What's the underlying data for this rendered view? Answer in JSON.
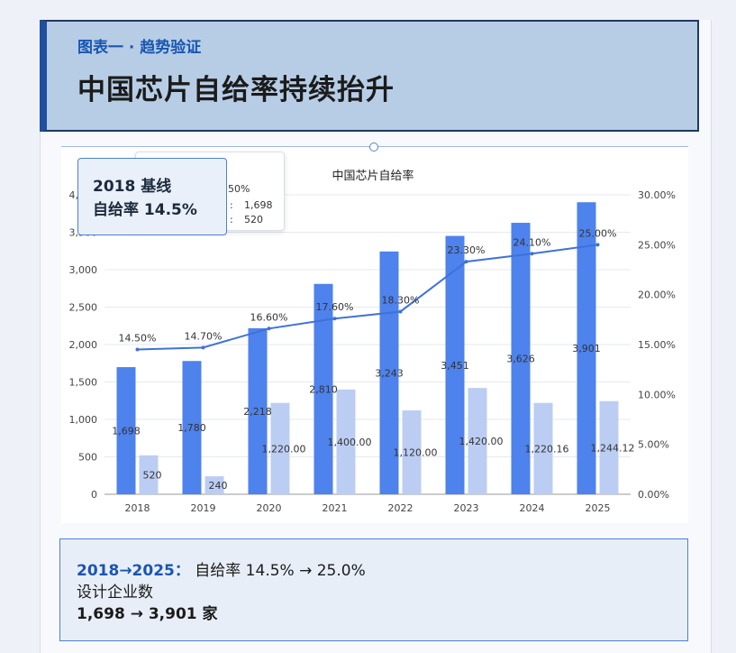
{
  "header": {
    "subtitle": "图表一 · 趋势验证",
    "title": "中国芯片自给率持续抬升"
  },
  "tooltip": {
    "rows": [
      {
        "label": "",
        "value": "50%"
      },
      {
        "label": ":",
        "value": "1,698"
      },
      {
        "label": ":",
        "value": "520"
      }
    ]
  },
  "callout": {
    "line1": "2018 基线",
    "line2": "自给率 14.5%"
  },
  "summary": {
    "range": "2018→2025：",
    "rate": "自给率 14.5% → 25.0%",
    "count_label": "设计企业数",
    "count": "1,698 → 3,901 家"
  },
  "colors": {
    "primary_bar": "#4e82ec",
    "secondary_bar": "#bccdf3",
    "line": "#3f72d8"
  },
  "chart_data": {
    "type": "bar",
    "title": "中国芯片自给率",
    "categories": [
      "2018",
      "2019",
      "2020",
      "2021",
      "2022",
      "2023",
      "2024",
      "2025"
    ],
    "series": [
      {
        "type": "bar",
        "axis": "left",
        "values": [
          1698,
          1780,
          2218,
          2810,
          3243,
          3451,
          3626,
          3901
        ],
        "labels": [
          "1,698",
          "1,780",
          "2,218",
          "2,810",
          "3,243",
          "3,451",
          "3,626",
          "3,901"
        ]
      },
      {
        "type": "bar",
        "axis": "left",
        "values": [
          520,
          240,
          1220,
          1400,
          1120,
          1420,
          1220.16,
          1244.12
        ],
        "labels": [
          "520",
          "240",
          "1,220.00",
          "1,400.00",
          "1,120.00",
          "1,420.00",
          "1,220.16",
          "1,244.12"
        ]
      },
      {
        "type": "line",
        "axis": "right",
        "values": [
          14.5,
          14.7,
          16.6,
          17.6,
          18.3,
          23.3,
          24.1,
          25.0
        ],
        "labels": [
          "14.50%",
          "14.70%",
          "16.60%",
          "17.60%",
          "18.30%",
          "23.30%",
          "24.10%",
          "25.00%"
        ]
      }
    ],
    "ylim_left": [
      0,
      4000
    ],
    "ylim_right": [
      0,
      30
    ],
    "left_ticks": [
      "0",
      "500",
      "1,000",
      "1,500",
      "2,000",
      "2,500",
      "3,000",
      "3,500",
      "4,000"
    ],
    "right_ticks": [
      "0.00%",
      "5.00%",
      "10.00%",
      "15.00%",
      "20.00%",
      "25.00%",
      "30.00%"
    ],
    "grid": true,
    "legend": "none"
  }
}
